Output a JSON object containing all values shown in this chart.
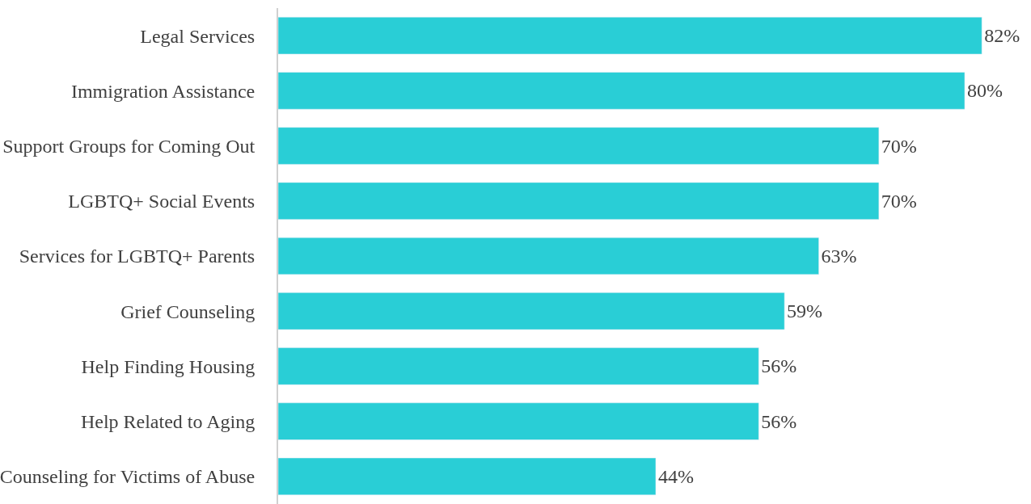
{
  "chart_data": {
    "type": "bar",
    "orientation": "horizontal",
    "categories": [
      "Legal Services",
      "Immigration Assistance",
      "Support Groups for Coming Out",
      "LGBTQ+ Social Events",
      "Services for LGBTQ+ Parents",
      "Grief Counseling",
      "Help Finding Housing",
      "Help Related to Aging",
      "Counseling for Victims of Abuse"
    ],
    "values": [
      82,
      80,
      70,
      70,
      63,
      59,
      56,
      56,
      44
    ],
    "value_labels": [
      "82%",
      "80%",
      "70%",
      "70%",
      "63%",
      "59%",
      "56%",
      "56%",
      "44%"
    ],
    "color": "#29ced6",
    "tick_labels": "y",
    "legend": false
  }
}
